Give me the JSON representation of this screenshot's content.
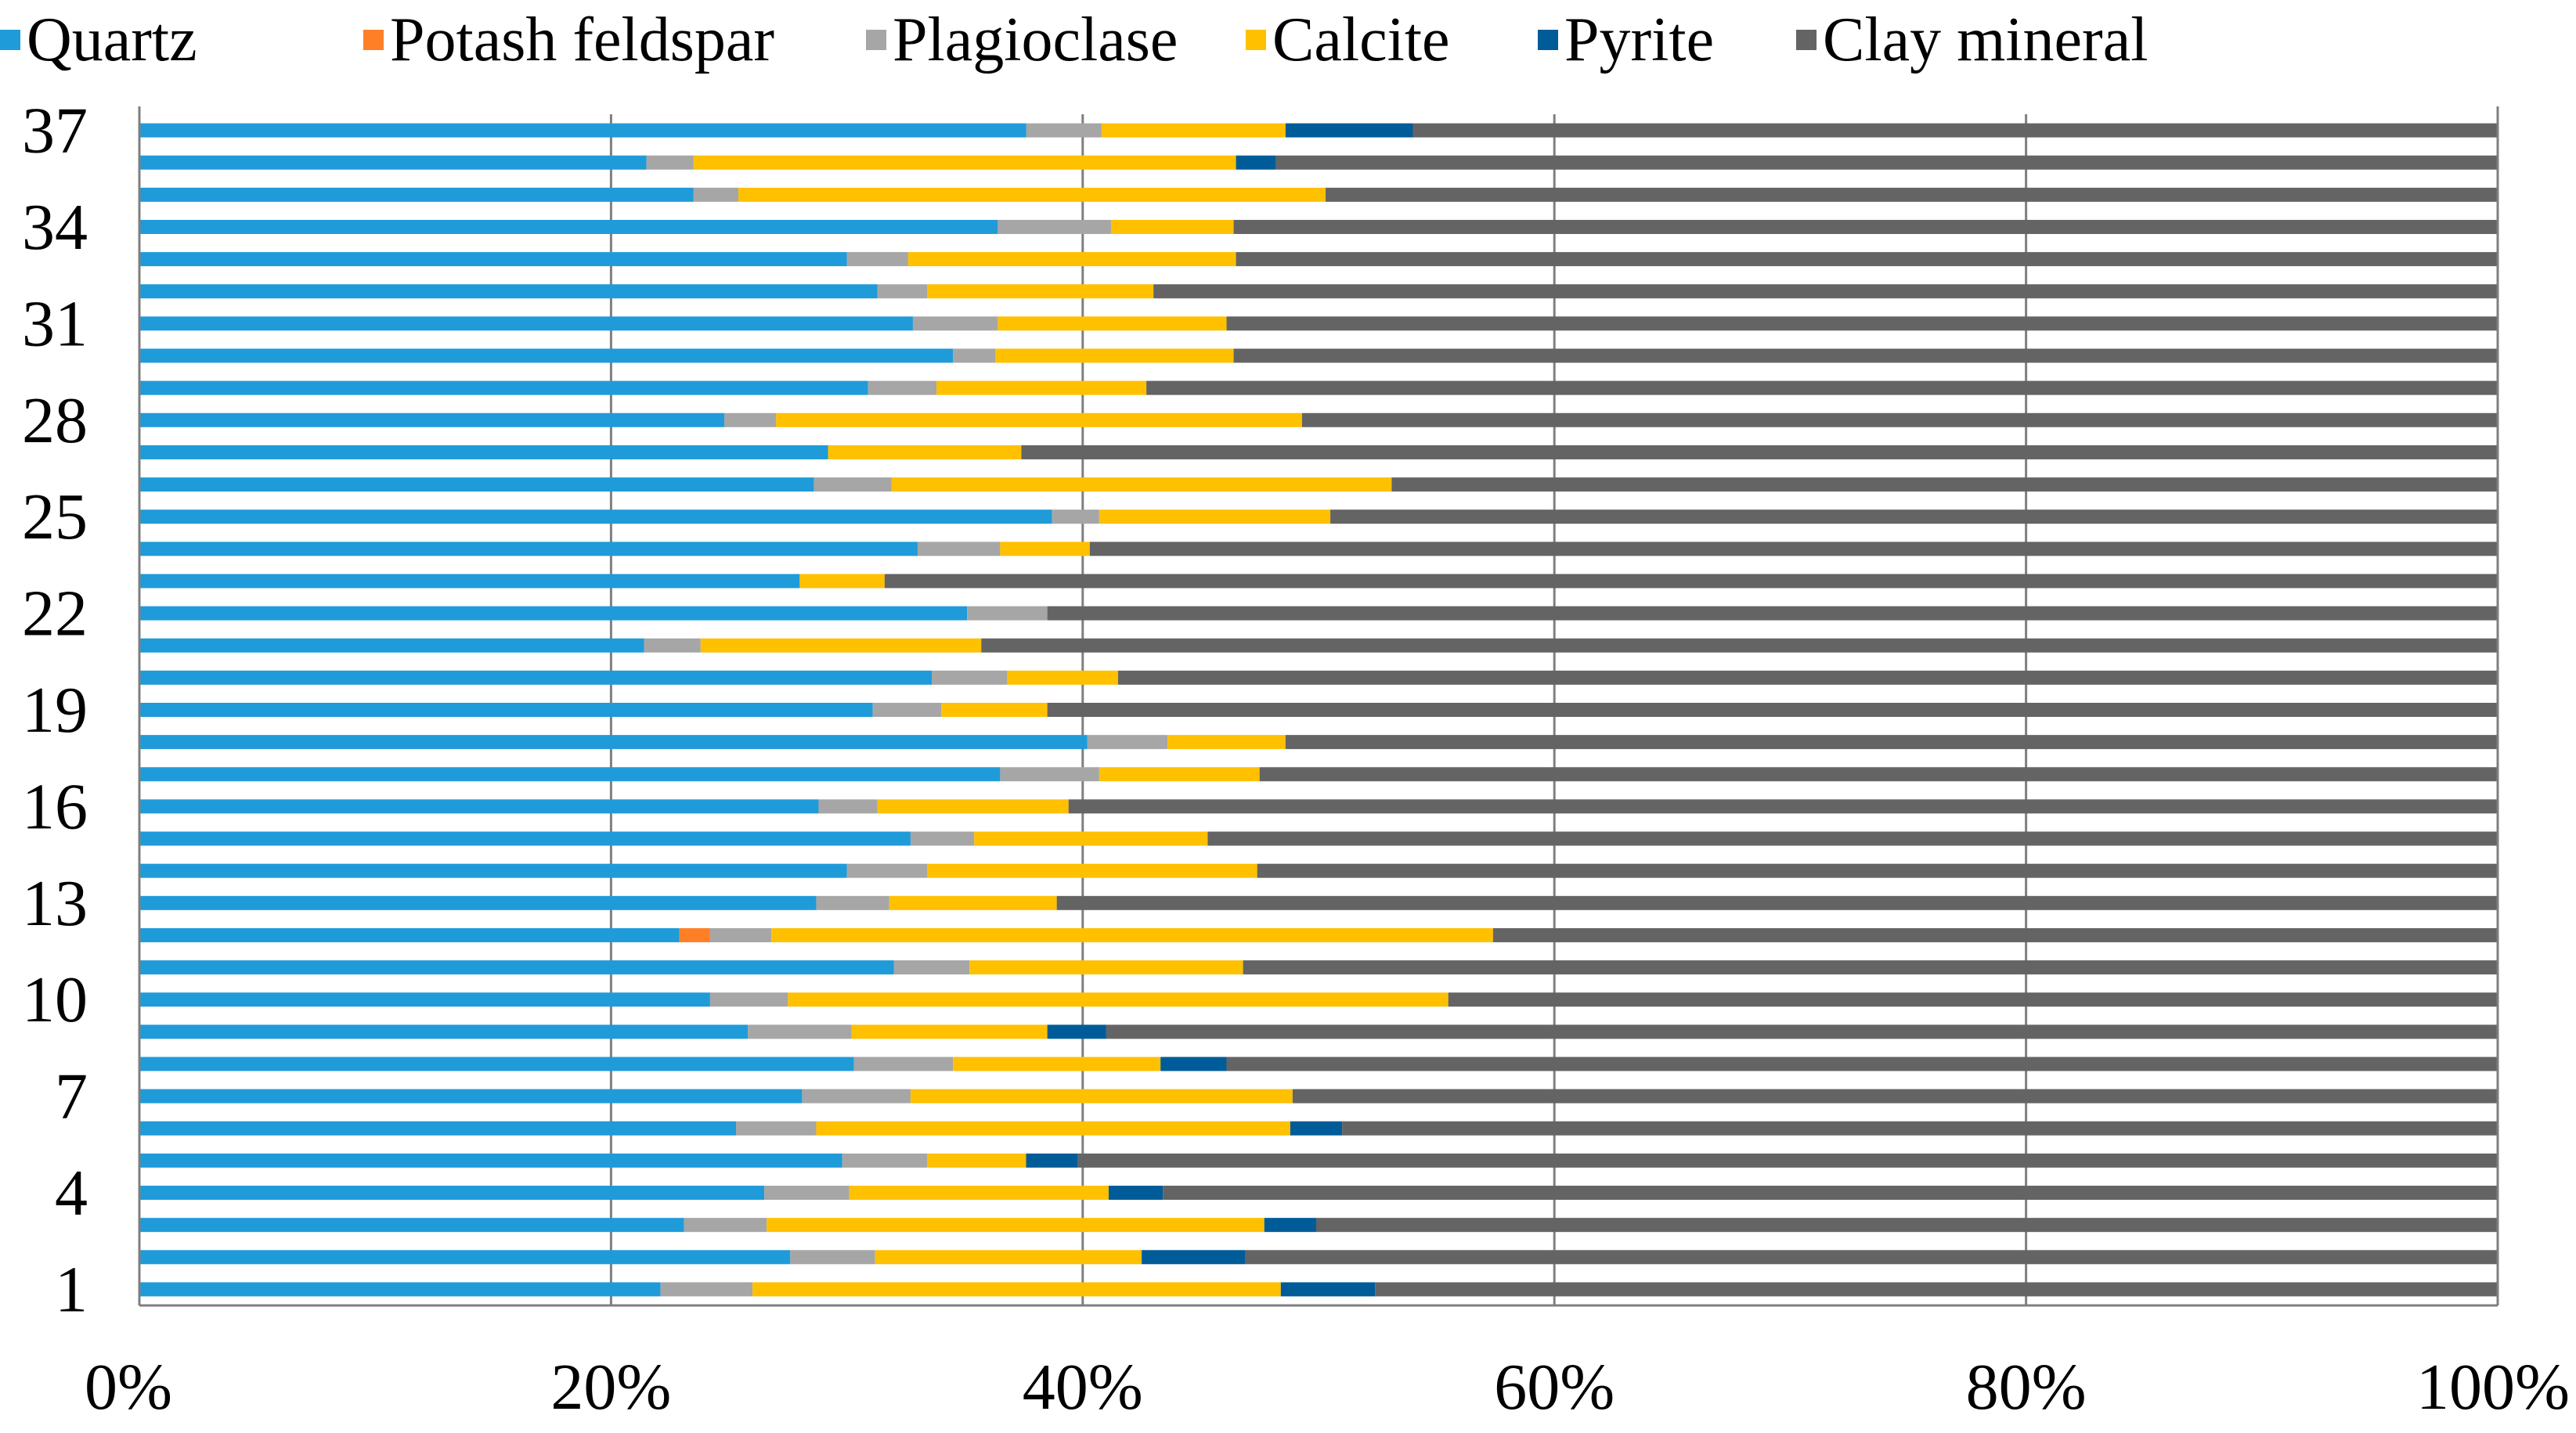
{
  "chart_data": {
    "type": "bar",
    "orientation": "horizontal",
    "stacked": "percent",
    "title": "",
    "xlabel": "",
    "ylabel": "",
    "xlim": [
      0,
      100
    ],
    "grid": true,
    "legend_position": "top",
    "categories": [
      "1",
      "2",
      "3",
      "4",
      "5",
      "6",
      "7",
      "8",
      "9",
      "10",
      "11",
      "12",
      "13",
      "14",
      "15",
      "16",
      "17",
      "18",
      "19",
      "20",
      "21",
      "22",
      "23",
      "24",
      "25",
      "26",
      "27",
      "28",
      "29",
      "30",
      "31",
      "32",
      "33",
      "34",
      "35",
      "36",
      "37"
    ],
    "y_tick_labels": [
      "1",
      "4",
      "7",
      "10",
      "13",
      "16",
      "19",
      "22",
      "25",
      "28",
      "31",
      "34",
      "37"
    ],
    "x_tick_labels": [
      "0%",
      "20%",
      "40%",
      "60%",
      "80%",
      "100%"
    ],
    "series": [
      {
        "name": "Quartz",
        "color": "#1F9BD9",
        "values": [
          22.1,
          27.6,
          23.1,
          26.5,
          29.8,
          25.3,
          28.1,
          30.3,
          25.8,
          24.2,
          32.0,
          22.9,
          28.7,
          30.0,
          32.7,
          28.8,
          36.5,
          40.2,
          31.1,
          33.6,
          21.4,
          35.1,
          28.0,
          33.0,
          38.7,
          28.6,
          29.2,
          24.8,
          30.9,
          34.5,
          32.8,
          31.3,
          30.0,
          36.4,
          23.5,
          21.5,
          37.6
        ]
      },
      {
        "name": "Potash feldspar",
        "color": "#FF7F27",
        "values": [
          0,
          0,
          0,
          0,
          0,
          0,
          0,
          0,
          0,
          0,
          0,
          1.3,
          0,
          0,
          0,
          0,
          0,
          0,
          0,
          0,
          0,
          0,
          0,
          0,
          0,
          0,
          0,
          0,
          0,
          0,
          0,
          0,
          0,
          0,
          0,
          0,
          0
        ]
      },
      {
        "name": "Plagioclase",
        "color": "#A6A6A6",
        "values": [
          3.9,
          3.6,
          3.5,
          3.6,
          3.6,
          3.4,
          4.6,
          4.2,
          4.4,
          3.3,
          3.2,
          2.6,
          3.1,
          3.4,
          2.7,
          2.5,
          4.2,
          3.4,
          2.9,
          3.2,
          2.4,
          3.4,
          0,
          3.5,
          2.0,
          3.3,
          0,
          2.2,
          2.9,
          1.8,
          3.6,
          2.1,
          2.6,
          4.8,
          1.9,
          2.0,
          3.2
        ]
      },
      {
        "name": "Calcite",
        "color": "#FFC000",
        "values": [
          22.4,
          11.3,
          21.1,
          11.0,
          4.2,
          20.1,
          16.2,
          8.8,
          8.3,
          28.0,
          11.6,
          30.6,
          7.1,
          14.0,
          9.9,
          8.1,
          6.8,
          5.0,
          4.5,
          4.7,
          11.9,
          0,
          3.6,
          3.8,
          9.8,
          21.2,
          8.2,
          22.3,
          8.9,
          10.1,
          9.7,
          9.6,
          13.9,
          5.2,
          24.9,
          23.0,
          7.8
        ]
      },
      {
        "name": "Pyrite",
        "color": "#005C99",
        "values": [
          4.0,
          4.4,
          2.2,
          2.3,
          2.2,
          2.2,
          0,
          2.8,
          2.5,
          0,
          0,
          0,
          0,
          0,
          0,
          0,
          0,
          0,
          0,
          0,
          0,
          0,
          0,
          0,
          0,
          0,
          0,
          0,
          0,
          0,
          0,
          0,
          0,
          0,
          0,
          1.7,
          5.4
        ]
      },
      {
        "name": "Clay mineral",
        "color": "#646464",
        "values": [
          47.6,
          53.1,
          50.1,
          56.6,
          60.2,
          49.0,
          51.1,
          53.9,
          59.0,
          44.5,
          53.2,
          42.6,
          61.1,
          52.6,
          54.7,
          60.6,
          52.5,
          51.4,
          61.5,
          58.5,
          64.3,
          61.5,
          68.4,
          59.7,
          49.5,
          46.9,
          62.6,
          50.7,
          57.3,
          53.6,
          53.9,
          57.0,
          53.5,
          53.6,
          49.7,
          51.8,
          46.0
        ]
      }
    ]
  }
}
